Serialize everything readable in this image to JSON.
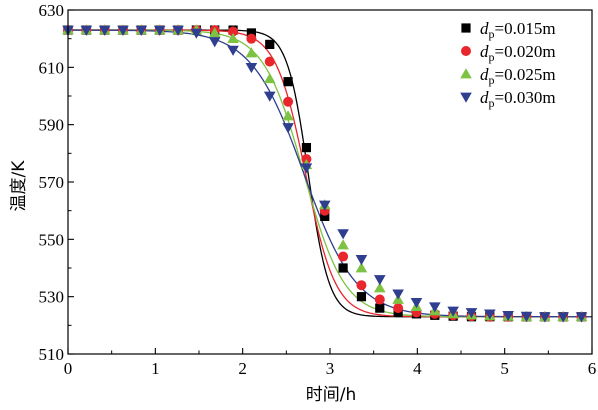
{
  "chart_data": {
    "type": "line",
    "xlabel": "时间/h",
    "ylabel": "温度/K",
    "xlim": [
      0,
      6
    ],
    "ylim": [
      510,
      630
    ],
    "xticks": [
      0,
      1,
      2,
      3,
      4,
      5,
      6
    ],
    "yticks": [
      510,
      530,
      550,
      570,
      590,
      610,
      630
    ],
    "grid": false,
    "legend_position": "top-right",
    "legend_prefix": "d",
    "legend_subscript": "p",
    "series": [
      {
        "name": "=0.015m",
        "color": "#000000",
        "marker": "square",
        "curve": {
          "T_high": 623,
          "T_low": 523,
          "t_mid": 2.75,
          "width": 0.12
        },
        "points": [
          [
            0,
            623
          ],
          [
            0.21,
            623
          ],
          [
            0.42,
            623
          ],
          [
            0.63,
            623
          ],
          [
            0.84,
            623
          ],
          [
            1.05,
            623
          ],
          [
            1.26,
            623
          ],
          [
            1.47,
            623
          ],
          [
            1.68,
            623
          ],
          [
            1.89,
            623
          ],
          [
            2.1,
            622
          ],
          [
            2.31,
            618
          ],
          [
            2.52,
            605
          ],
          [
            2.73,
            582
          ],
          [
            2.94,
            558
          ],
          [
            3.15,
            540
          ],
          [
            3.36,
            530
          ],
          [
            3.57,
            526
          ],
          [
            3.78,
            524.5
          ],
          [
            3.99,
            524
          ],
          [
            4.2,
            523.5
          ],
          [
            4.41,
            523.2
          ],
          [
            4.62,
            523
          ],
          [
            4.83,
            523
          ],
          [
            5.04,
            523
          ],
          [
            5.25,
            523
          ],
          [
            5.46,
            523
          ],
          [
            5.67,
            523
          ],
          [
            5.88,
            523
          ]
        ]
      },
      {
        "name": "=0.020m",
        "color": "#e8262c",
        "marker": "circle",
        "curve": {
          "T_high": 623,
          "T_low": 523,
          "t_mid": 2.72,
          "width": 0.17
        },
        "points": [
          [
            0,
            623
          ],
          [
            0.21,
            623
          ],
          [
            0.42,
            623
          ],
          [
            0.63,
            623
          ],
          [
            0.84,
            623
          ],
          [
            1.05,
            623
          ],
          [
            1.26,
            623
          ],
          [
            1.47,
            623
          ],
          [
            1.68,
            623
          ],
          [
            1.89,
            622.5
          ],
          [
            2.1,
            620
          ],
          [
            2.31,
            612
          ],
          [
            2.52,
            598
          ],
          [
            2.73,
            578
          ],
          [
            2.94,
            560
          ],
          [
            3.15,
            544
          ],
          [
            3.36,
            534
          ],
          [
            3.57,
            529
          ],
          [
            3.78,
            526
          ],
          [
            3.99,
            524.5
          ],
          [
            4.2,
            524
          ],
          [
            4.41,
            523.5
          ],
          [
            4.62,
            523.2
          ],
          [
            4.83,
            523
          ],
          [
            5.04,
            523
          ],
          [
            5.25,
            523
          ],
          [
            5.46,
            523
          ],
          [
            5.67,
            523
          ],
          [
            5.88,
            523
          ]
        ]
      },
      {
        "name": "=0.025m",
        "color": "#7dc242",
        "marker": "triangle-up",
        "curve": {
          "T_high": 623,
          "T_low": 523,
          "t_mid": 2.7,
          "width": 0.23
        },
        "points": [
          [
            0,
            623
          ],
          [
            0.21,
            623
          ],
          [
            0.42,
            623
          ],
          [
            0.63,
            623
          ],
          [
            0.84,
            623
          ],
          [
            1.05,
            623
          ],
          [
            1.26,
            623
          ],
          [
            1.47,
            623
          ],
          [
            1.68,
            622
          ],
          [
            1.89,
            620
          ],
          [
            2.1,
            615
          ],
          [
            2.31,
            606
          ],
          [
            2.52,
            593
          ],
          [
            2.73,
            576
          ],
          [
            2.94,
            562
          ],
          [
            3.15,
            548
          ],
          [
            3.36,
            540
          ],
          [
            3.57,
            533
          ],
          [
            3.78,
            529
          ],
          [
            3.99,
            526.5
          ],
          [
            4.2,
            525
          ],
          [
            4.41,
            524
          ],
          [
            4.62,
            523.6
          ],
          [
            4.83,
            523.3
          ],
          [
            5.04,
            523.1
          ],
          [
            5.25,
            523
          ],
          [
            5.46,
            523
          ],
          [
            5.67,
            523
          ],
          [
            5.88,
            523
          ]
        ]
      },
      {
        "name": "=0.030m",
        "color": "#2f3e8f",
        "marker": "triangle-down",
        "curve": {
          "T_high": 623,
          "T_low": 523,
          "t_mid": 2.7,
          "width": 0.3
        },
        "points": [
          [
            0,
            623
          ],
          [
            0.21,
            623
          ],
          [
            0.42,
            623
          ],
          [
            0.63,
            623
          ],
          [
            0.84,
            623
          ],
          [
            1.05,
            623
          ],
          [
            1.26,
            623
          ],
          [
            1.47,
            622
          ],
          [
            1.68,
            619
          ],
          [
            1.89,
            616
          ],
          [
            2.1,
            610
          ],
          [
            2.31,
            600
          ],
          [
            2.52,
            589
          ],
          [
            2.73,
            575
          ],
          [
            2.94,
            562
          ],
          [
            3.15,
            552
          ],
          [
            3.36,
            543
          ],
          [
            3.57,
            536
          ],
          [
            3.78,
            531
          ],
          [
            3.99,
            528
          ],
          [
            4.2,
            526.5
          ],
          [
            4.41,
            525
          ],
          [
            4.62,
            524.5
          ],
          [
            4.83,
            524
          ],
          [
            5.04,
            523.5
          ],
          [
            5.25,
            523.2
          ],
          [
            5.46,
            523
          ],
          [
            5.67,
            523
          ],
          [
            5.88,
            523
          ]
        ]
      }
    ]
  }
}
